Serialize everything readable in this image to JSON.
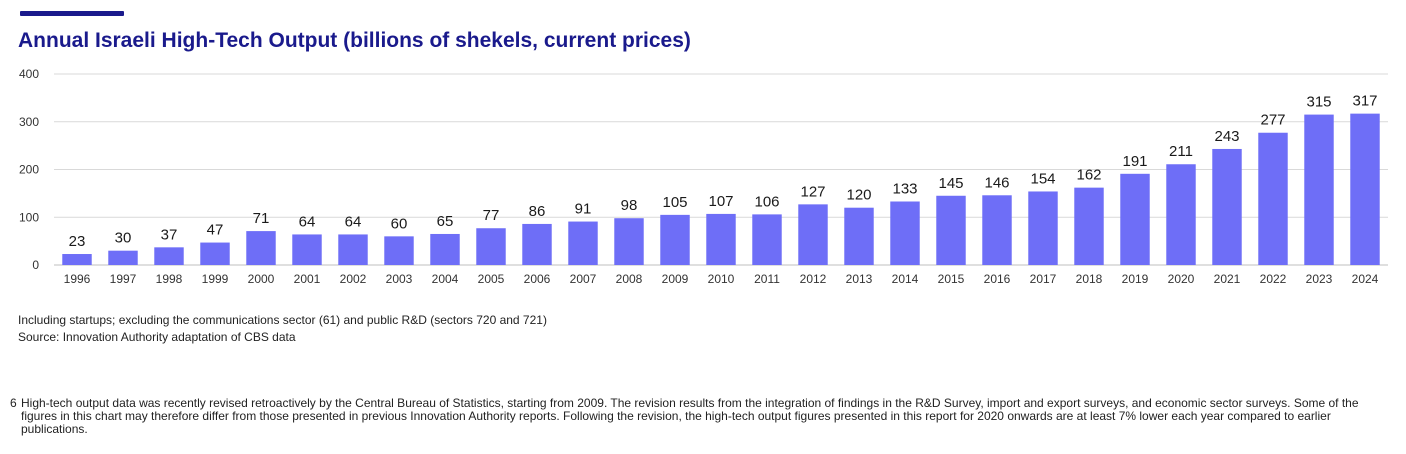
{
  "accent_color": "#1a1a8c",
  "bar_color": "#6e6ef7",
  "grid_color": "#d9d9d9",
  "chart_data": {
    "type": "bar",
    "title": "Annual Israeli High-Tech Output (billions of shekels, current prices)",
    "categories": [
      "1996",
      "1997",
      "1998",
      "1999",
      "2000",
      "2001",
      "2002",
      "2003",
      "2004",
      "2005",
      "2006",
      "2007",
      "2008",
      "2009",
      "2010",
      "2011",
      "2012",
      "2013",
      "2014",
      "2015",
      "2016",
      "2017",
      "2018",
      "2019",
      "2020",
      "2021",
      "2022",
      "2023",
      "2024"
    ],
    "values": [
      23,
      30,
      37,
      47,
      71,
      64,
      64,
      60,
      65,
      77,
      86,
      91,
      98,
      105,
      107,
      106,
      127,
      120,
      133,
      145,
      146,
      154,
      162,
      191,
      211,
      243,
      277,
      315,
      317
    ],
    "yticks": [
      0,
      100,
      200,
      300,
      400
    ],
    "ylim": [
      0,
      400
    ],
    "grid": true,
    "xlabel": "",
    "ylabel": ""
  },
  "notes": {
    "line1": "Including startups; excluding the communications sector (61) and public R&D (sectors 720 and 721)",
    "line2": "Source: Innovation Authority adaptation of CBS data"
  },
  "footnote": {
    "number": "6",
    "text": "High-tech output data was recently revised retroactively by the Central Bureau of Statistics, starting from 2009. The revision results from the integration of findings in the R&D Survey, import and export surveys, and economic sector surveys. Some of the figures in this chart may therefore differ from those presented in previous Innovation Authority reports. Following the revision, the high-tech output figures presented in this report for 2020 onwards are at least 7% lower each year compared to earlier publications."
  }
}
